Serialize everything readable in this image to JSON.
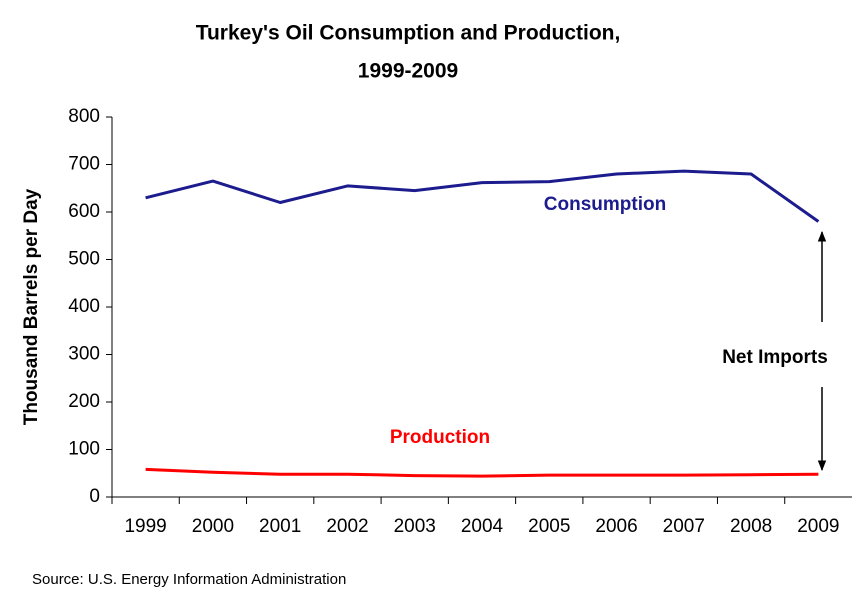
{
  "chart_data": {
    "type": "line",
    "title": [
      "Turkey's Oil Consumption and Production,",
      "1999-2009"
    ],
    "y_label": "Thousand Barrels per Day",
    "source": "Source: U.S. Energy Information Administration",
    "categories": [
      "1999",
      "2000",
      "2001",
      "2002",
      "2003",
      "2004",
      "2005",
      "2006",
      "2007",
      "2008",
      "2009"
    ],
    "series": [
      {
        "name": "Consumption",
        "color": "#1c1c8e",
        "values": [
          630,
          665,
          620,
          655,
          645,
          662,
          664,
          680,
          686,
          680,
          580
        ]
      },
      {
        "name": "Production",
        "color": "#ff0000",
        "values": [
          58,
          52,
          48,
          48,
          45,
          44,
          46,
          46,
          46,
          47,
          48
        ]
      }
    ],
    "annotations": [
      "Net Imports"
    ],
    "ylim": [
      0,
      800
    ],
    "yticks": [
      0,
      100,
      200,
      300,
      400,
      500,
      600,
      700,
      800
    ],
    "grid": false
  }
}
